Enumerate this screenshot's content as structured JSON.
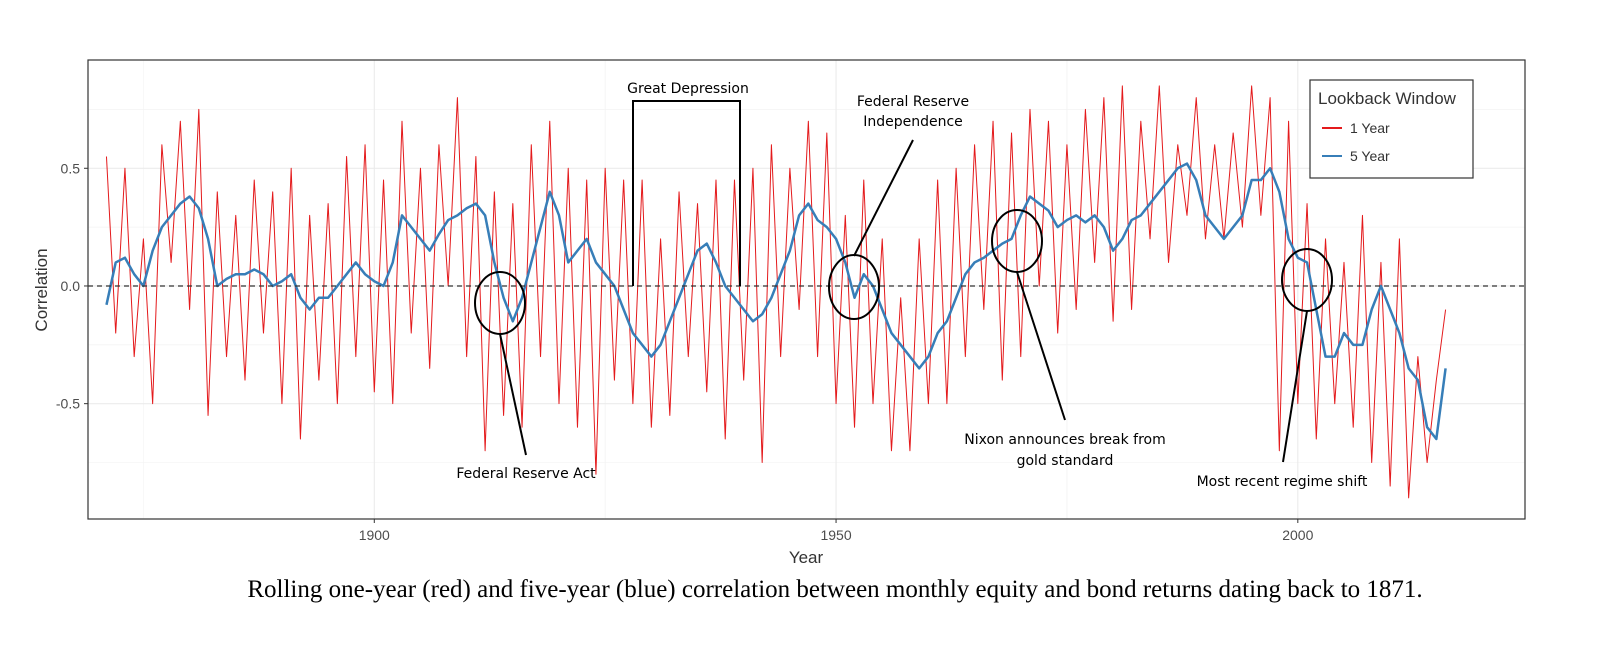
{
  "chart_data": {
    "type": "line",
    "x_label": "Year",
    "y_label": "Correlation",
    "caption": "Rolling one-year (red) and five-year (blue) correlation between monthly equity and bond returns dating back to 1871.",
    "legend": {
      "title": "Lookback Window",
      "position": "top-right"
    },
    "grid": true,
    "reference_line": 0,
    "xlim": [
      1869,
      2024.6
    ],
    "xticks": [
      1900,
      1950,
      2000
    ],
    "ylim": [
      -0.99,
      0.96
    ],
    "yticks": [
      -0.5,
      {
        "value": 0,
        "label": "0.0"
      },
      0.5
    ],
    "annotations": [
      {
        "lines": [
          "Great Depression"
        ]
      },
      {
        "lines": [
          "Federal Reserve",
          "Independence"
        ]
      },
      {
        "lines": [
          "Federal Reserve Act"
        ]
      },
      {
        "lines": [
          "Nixon announces break from",
          "gold standard"
        ]
      },
      {
        "lines": [
          "Most recent regime shift"
        ]
      }
    ],
    "x": [
      1871,
      1872,
      1873,
      1874,
      1875,
      1876,
      1877,
      1878,
      1879,
      1880,
      1881,
      1882,
      1883,
      1884,
      1885,
      1886,
      1887,
      1888,
      1889,
      1890,
      1891,
      1892,
      1893,
      1894,
      1895,
      1896,
      1897,
      1898,
      1899,
      1900,
      1901,
      1902,
      1903,
      1904,
      1905,
      1906,
      1907,
      1908,
      1909,
      1910,
      1911,
      1912,
      1913,
      1914,
      1915,
      1916,
      1917,
      1918,
      1919,
      1920,
      1921,
      1922,
      1923,
      1924,
      1925,
      1926,
      1927,
      1928,
      1929,
      1930,
      1931,
      1932,
      1933,
      1934,
      1935,
      1936,
      1937,
      1938,
      1939,
      1940,
      1941,
      1942,
      1943,
      1944,
      1945,
      1946,
      1947,
      1948,
      1949,
      1950,
      1951,
      1952,
      1953,
      1954,
      1955,
      1956,
      1957,
      1958,
      1959,
      1960,
      1961,
      1962,
      1963,
      1964,
      1965,
      1966,
      1967,
      1968,
      1969,
      1970,
      1971,
      1972,
      1973,
      1974,
      1975,
      1976,
      1977,
      1978,
      1979,
      1980,
      1981,
      1982,
      1983,
      1984,
      1985,
      1986,
      1987,
      1988,
      1989,
      1990,
      1991,
      1992,
      1993,
      1994,
      1995,
      1996,
      1997,
      1998,
      1999,
      2000,
      2001,
      2002,
      2003,
      2004,
      2005,
      2006,
      2007,
      2008,
      2009,
      2010,
      2011,
      2012,
      2013,
      2014,
      2015,
      2016
    ],
    "series": [
      {
        "name": "1 Year",
        "color": "#e41a1c",
        "width": 1,
        "values": [
          0.55,
          -0.2,
          0.5,
          -0.3,
          0.2,
          -0.5,
          0.6,
          0.1,
          0.7,
          -0.1,
          0.75,
          -0.55,
          0.4,
          -0.3,
          0.3,
          -0.4,
          0.45,
          -0.2,
          0.4,
          -0.5,
          0.5,
          -0.65,
          0.3,
          -0.4,
          0.35,
          -0.5,
          0.55,
          -0.3,
          0.6,
          -0.45,
          0.45,
          -0.5,
          0.7,
          -0.2,
          0.5,
          -0.35,
          0.6,
          0.0,
          0.8,
          -0.3,
          0.55,
          -0.7,
          0.4,
          -0.55,
          0.35,
          -0.6,
          0.6,
          -0.3,
          0.7,
          -0.5,
          0.5,
          -0.6,
          0.45,
          -0.8,
          0.5,
          -0.4,
          0.45,
          -0.5,
          0.45,
          -0.6,
          0.2,
          -0.55,
          0.4,
          -0.3,
          0.35,
          -0.45,
          0.45,
          -0.65,
          0.45,
          -0.4,
          0.5,
          -0.75,
          0.6,
          -0.3,
          0.5,
          -0.1,
          0.7,
          -0.3,
          0.65,
          -0.5,
          0.3,
          -0.6,
          0.45,
          -0.5,
          0.2,
          -0.7,
          -0.05,
          -0.7,
          0.2,
          -0.5,
          0.45,
          -0.5,
          0.5,
          -0.3,
          0.6,
          -0.1,
          0.7,
          -0.4,
          0.65,
          -0.3,
          0.75,
          0.0,
          0.7,
          -0.2,
          0.6,
          -0.1,
          0.75,
          0.1,
          0.8,
          -0.15,
          0.85,
          -0.1,
          0.7,
          0.2,
          0.85,
          0.1,
          0.6,
          0.3,
          0.8,
          0.2,
          0.6,
          0.2,
          0.65,
          0.25,
          0.85,
          0.3,
          0.8,
          -0.7,
          0.7,
          -0.5,
          0.35,
          -0.65,
          0.2,
          -0.5,
          0.1,
          -0.6,
          0.3,
          -0.75,
          0.1,
          -0.85,
          0.2,
          -0.9,
          -0.3,
          -0.75,
          -0.4,
          -0.1
        ]
      },
      {
        "name": "5 Year",
        "color": "#377eb8",
        "width": 2.5,
        "values": [
          -0.08,
          0.1,
          0.12,
          0.05,
          0.0,
          0.15,
          0.25,
          0.3,
          0.35,
          0.38,
          0.33,
          0.2,
          0.0,
          0.03,
          0.05,
          0.05,
          0.07,
          0.05,
          0.0,
          0.02,
          0.05,
          -0.05,
          -0.1,
          -0.05,
          -0.05,
          0.0,
          0.05,
          0.1,
          0.05,
          0.02,
          0.0,
          0.1,
          0.3,
          0.25,
          0.2,
          0.15,
          0.22,
          0.28,
          0.3,
          0.33,
          0.35,
          0.3,
          0.1,
          -0.05,
          -0.15,
          -0.05,
          0.1,
          0.25,
          0.4,
          0.3,
          0.1,
          0.15,
          0.2,
          0.1,
          0.05,
          0.0,
          -0.1,
          -0.2,
          -0.25,
          -0.3,
          -0.25,
          -0.15,
          -0.05,
          0.05,
          0.15,
          0.18,
          0.1,
          0.0,
          -0.05,
          -0.1,
          -0.15,
          -0.12,
          -0.05,
          0.05,
          0.15,
          0.3,
          0.35,
          0.28,
          0.25,
          0.2,
          0.1,
          -0.05,
          0.05,
          0.0,
          -0.1,
          -0.2,
          -0.25,
          -0.3,
          -0.35,
          -0.3,
          -0.2,
          -0.15,
          -0.05,
          0.05,
          0.1,
          0.12,
          0.15,
          0.18,
          0.2,
          0.3,
          0.38,
          0.35,
          0.32,
          0.25,
          0.28,
          0.3,
          0.27,
          0.3,
          0.25,
          0.15,
          0.2,
          0.28,
          0.3,
          0.35,
          0.4,
          0.45,
          0.5,
          0.52,
          0.45,
          0.3,
          0.25,
          0.2,
          0.25,
          0.3,
          0.45,
          0.45,
          0.5,
          0.4,
          0.2,
          0.12,
          0.1,
          -0.1,
          -0.3,
          -0.3,
          -0.2,
          -0.25,
          -0.25,
          -0.1,
          0.0,
          -0.1,
          -0.2,
          -0.35,
          -0.4,
          -0.6,
          -0.65,
          -0.35
        ]
      }
    ]
  }
}
